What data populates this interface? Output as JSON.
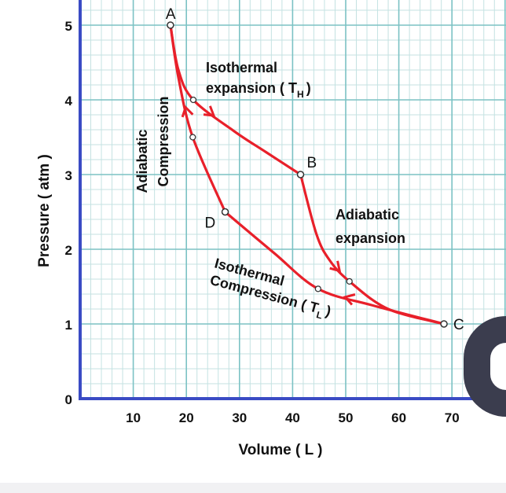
{
  "chart_data": {
    "type": "line",
    "title": "",
    "xlabel": "Volume ( L )",
    "ylabel": "Pressure ( atm )",
    "xlim": [
      0,
      80
    ],
    "ylim": [
      0,
      5.3
    ],
    "x_ticks": [
      10,
      20,
      30,
      40,
      50,
      60,
      70
    ],
    "y_ticks": [
      0,
      1,
      2,
      3,
      4,
      5
    ],
    "grid": true,
    "colors": {
      "curve": "#e8202a",
      "axis": "#3a4bc4",
      "grid_major": "#7cc2c4",
      "grid_minor": "#c4e2e2"
    },
    "states": [
      {
        "name": "A",
        "x": 17,
        "y": 5.0
      },
      {
        "name": "B",
        "x": 41.5,
        "y": 3.0
      },
      {
        "name": "C",
        "x": 68.5,
        "y": 1.0
      },
      {
        "name": "D",
        "x": 27.3,
        "y": 2.5
      }
    ],
    "series": [
      {
        "label": "Isothermal expansion ( T_H )",
        "points": [
          [
            17,
            5.0
          ],
          [
            18.5,
            4.4
          ],
          [
            21.3,
            4.0
          ],
          [
            29,
            3.58
          ],
          [
            35,
            3.3
          ],
          [
            41.5,
            3.0
          ]
        ],
        "markers": [
          [
            21.3,
            4.0
          ]
        ]
      },
      {
        "label": "Adiabatic expansion",
        "points": [
          [
            41.5,
            3.0
          ],
          [
            44.5,
            2.2
          ],
          [
            47,
            1.85
          ],
          [
            50.7,
            1.57
          ],
          [
            58,
            1.2
          ],
          [
            68.5,
            1.0
          ]
        ],
        "markers": [
          [
            50.7,
            1.57
          ]
        ]
      },
      {
        "label": "Isothermal Compression ( T_L )",
        "points": [
          [
            68.5,
            1.0
          ],
          [
            55,
            1.25
          ],
          [
            44.8,
            1.47
          ],
          [
            36.5,
            1.95
          ],
          [
            27.3,
            2.5
          ]
        ],
        "markers": [
          [
            44.8,
            1.47
          ]
        ]
      },
      {
        "label": "Adiabatic Compression",
        "points": [
          [
            27.3,
            2.5
          ],
          [
            21.2,
            3.5
          ],
          [
            18.5,
            4.3
          ],
          [
            17,
            5.0
          ]
        ],
        "markers": [
          [
            21.2,
            3.5
          ]
        ]
      }
    ],
    "annotations": {
      "isothermal_expansion_line1": "Isothermal",
      "isothermal_expansion_line2": "expansion ( T",
      "isothermal_expansion_sub": "H",
      "adiabatic_expansion_line1": "Adiabatic",
      "adiabatic_expansion_line2": "expansion",
      "adiabatic_compression_line1": "Adiabatic",
      "adiabatic_compression_line2": "Compression",
      "isothermal_compression_line1": "Isothermal",
      "isothermal_compression_line2": "Compression ( T",
      "isothermal_compression_sub": "L",
      "close_paren": ")"
    }
  }
}
